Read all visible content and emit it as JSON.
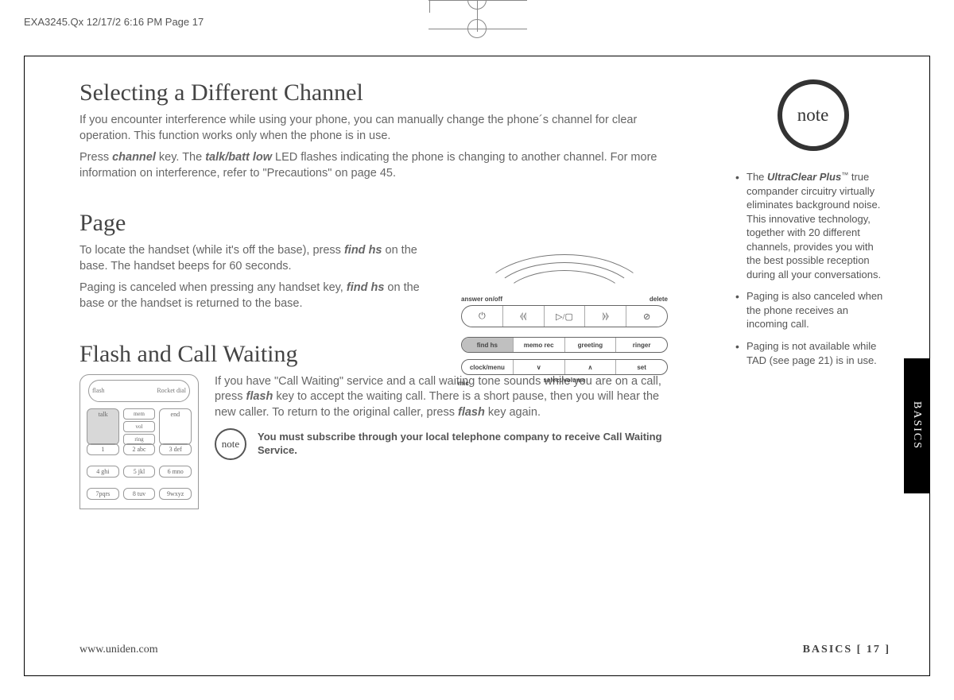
{
  "header_strip": "EXA3245.Qx  12/17/2  6:16 PM  Page 17",
  "side_tab": "BASICS",
  "section1": {
    "title": "Selecting a Different Channel",
    "p1a": "If you encounter interference while using your phone, you can manually change the phone´s channel for clear operation. This function works only when the phone is in use.",
    "p1b_pre": "Press ",
    "p1b_k1": "channel",
    "p1b_mid": " key. The ",
    "p1b_k2": "talk/batt low",
    "p1b_post": " LED flashes indicating the phone is changing to another channel. For more information on interference, refer to \"Precautions\" on page 45."
  },
  "section2": {
    "title": "Page",
    "p1_pre": "To locate the handset (while it's off the base), press ",
    "p1_k": "find hs",
    "p1_post": " on the base. The handset beeps for 60 seconds.",
    "p2_pre": "Paging is canceled when pressing any handset key, ",
    "p2_k": "find hs",
    "p2_post": " on the base or the handset is returned to the base."
  },
  "section3": {
    "title": "Flash and Call Waiting",
    "p_pre": "If you have \"Call Waiting\" service and a call waiting tone sounds while you are on a call, press ",
    "p_k1": "flash",
    "p_mid": " key to accept the waiting call. There is a short pause, then you will hear the new caller. To return to the original caller, press ",
    "p_k2": "flash",
    "p_post": " key again.",
    "note_label": "note",
    "note_text": "You must subscribe through your local telephone company to receive Call Waiting Service."
  },
  "handset": {
    "flash": "flash",
    "rocket": "Rocket dial",
    "talk": "talk",
    "mem": "mem",
    "vol": "vol",
    "ring": "ring",
    "end": "end",
    "keys": [
      [
        "1",
        "2 abc",
        "3 def"
      ],
      [
        "4 ghi",
        "5 jkl",
        "6 mno"
      ],
      [
        "7pqrs",
        "8 tuv",
        "9wxyz"
      ]
    ]
  },
  "base": {
    "label_left": "answer on/off",
    "label_right": "delete",
    "icons": [
      "⏻",
      "⦉⦉",
      "▷/▢",
      "⦊⦊",
      "⊘"
    ],
    "row2": [
      "find hs",
      "memo rec",
      "greeting",
      "ringer"
    ],
    "row3": [
      "clock/menu",
      "∨",
      "∧",
      "set"
    ],
    "row3_label": "select/volume",
    "mic": "mic"
  },
  "sidebar": {
    "note_label": "note",
    "b1_pre": "The ",
    "b1_brand": "UltraClear Plus",
    "b1_tm": "™",
    "b1_post": " true compander circuitry virtually eliminates background noise. This innovative technology, together with 20 different channels, provides you with the best possible reception during all your conversations.",
    "b2": "Paging is also canceled when the phone receives an incoming call.",
    "b3": "Paging is not available while TAD (see page 21) is in use."
  },
  "footer": {
    "url": "www.uniden.com",
    "page": "BASICS   [ 17 ]"
  }
}
